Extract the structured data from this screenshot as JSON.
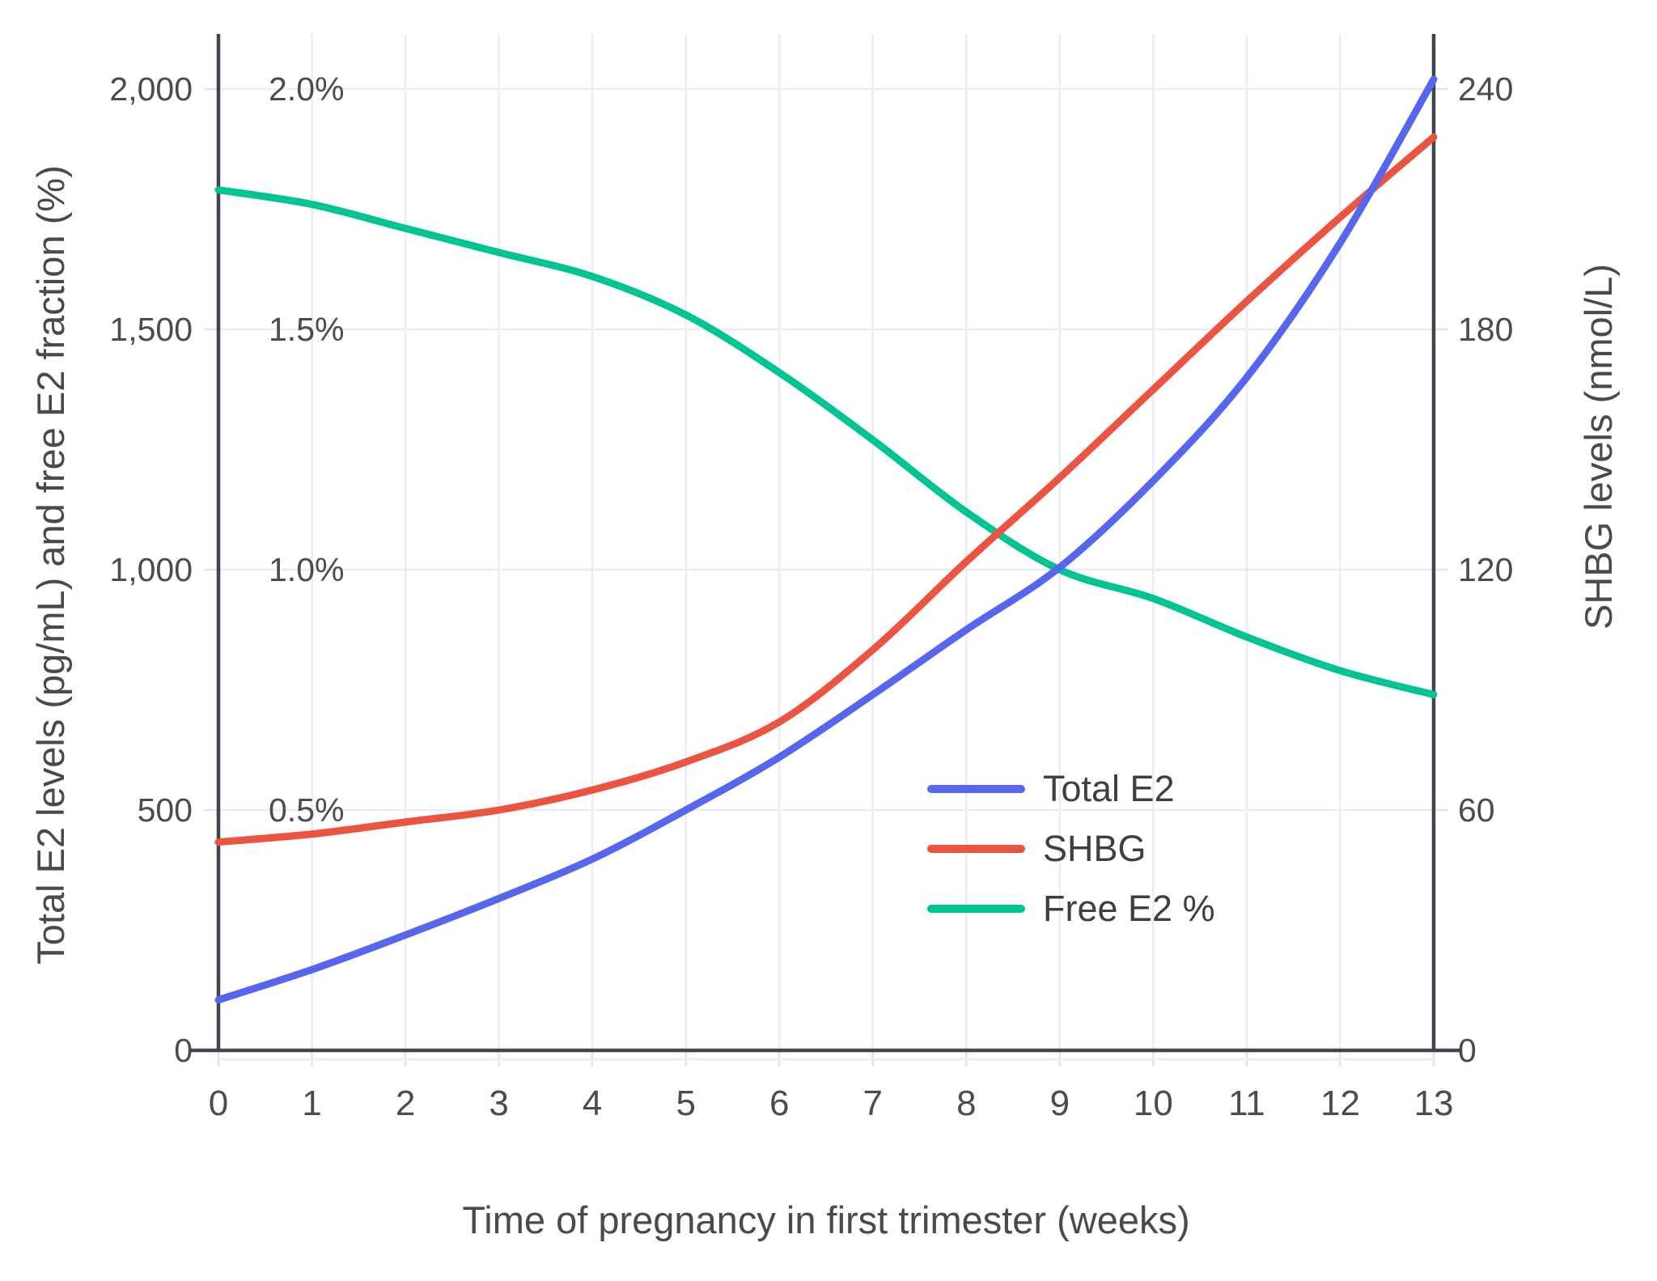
{
  "chart_data": {
    "type": "line",
    "title": "",
    "xlabel": "Time of pregnancy in first trimester (weeks)",
    "ylabel_left": "Total E2 levels (pg/mL) and free E2 fraction (%)",
    "ylabel_right": "SHBG levels (nmol/L)",
    "x": [
      0,
      1,
      2,
      3,
      4,
      5,
      6,
      7,
      8,
      9,
      10,
      11,
      12,
      13
    ],
    "x_tick_labels": [
      "0",
      "1",
      "2",
      "3",
      "4",
      "5",
      "6",
      "7",
      "8",
      "9",
      "10",
      "11",
      "12",
      "13"
    ],
    "xlim": [
      0,
      13
    ],
    "ylim_left": [
      0,
      2125
    ],
    "ylim_right": [
      0,
      255
    ],
    "grid": true,
    "legend_position": "inside-middle-right",
    "y_left_ticks": [
      {
        "value": 0,
        "label": "0"
      },
      {
        "value": 500,
        "label": "500"
      },
      {
        "value": 1000,
        "label": "1,000"
      },
      {
        "value": 1500,
        "label": "1,500"
      },
      {
        "value": 2000,
        "label": "2,000"
      }
    ],
    "y_left_pct_ticks": [
      {
        "value": 500,
        "label": "0.5%"
      },
      {
        "value": 1000,
        "label": "1.0%"
      },
      {
        "value": 1500,
        "label": "1.5%"
      },
      {
        "value": 2000,
        "label": "2.0%"
      }
    ],
    "y_right_ticks": [
      {
        "value": 0,
        "label": "0"
      },
      {
        "value": 60,
        "label": "60"
      },
      {
        "value": 120,
        "label": "120"
      },
      {
        "value": 180,
        "label": "180"
      },
      {
        "value": 240,
        "label": "240"
      }
    ],
    "series": [
      {
        "name": "Total E2",
        "axis": "left",
        "unit": "pg/mL",
        "color": "#5766EF",
        "values": [
          105,
          168,
          240,
          316,
          398,
          500,
          610,
          740,
          875,
          1005,
          1185,
          1400,
          1680,
          2020
        ]
      },
      {
        "name": "SHBG",
        "axis": "right",
        "unit": "nmol/L",
        "color": "#EC5340",
        "values": [
          52,
          54,
          57,
          60,
          65,
          72,
          82,
          100,
          122,
          143,
          165,
          187,
          208,
          228
        ]
      },
      {
        "name": "Free E2 %",
        "axis": "percent",
        "unit": "%",
        "color": "#00C592",
        "values": [
          1.79,
          1.76,
          1.71,
          1.66,
          1.61,
          1.53,
          1.41,
          1.27,
          1.12,
          1.0,
          0.94,
          0.86,
          0.79,
          0.74
        ]
      }
    ],
    "draw_order": [
      2,
      1,
      0
    ],
    "colors": {
      "background": "#ffffff",
      "grid": "#E9EEF6",
      "tick": "#DFE5EF",
      "axis_line": "#41454E",
      "tick_text": "#4c4c4c",
      "title_text": "#4a4a4a"
    }
  }
}
